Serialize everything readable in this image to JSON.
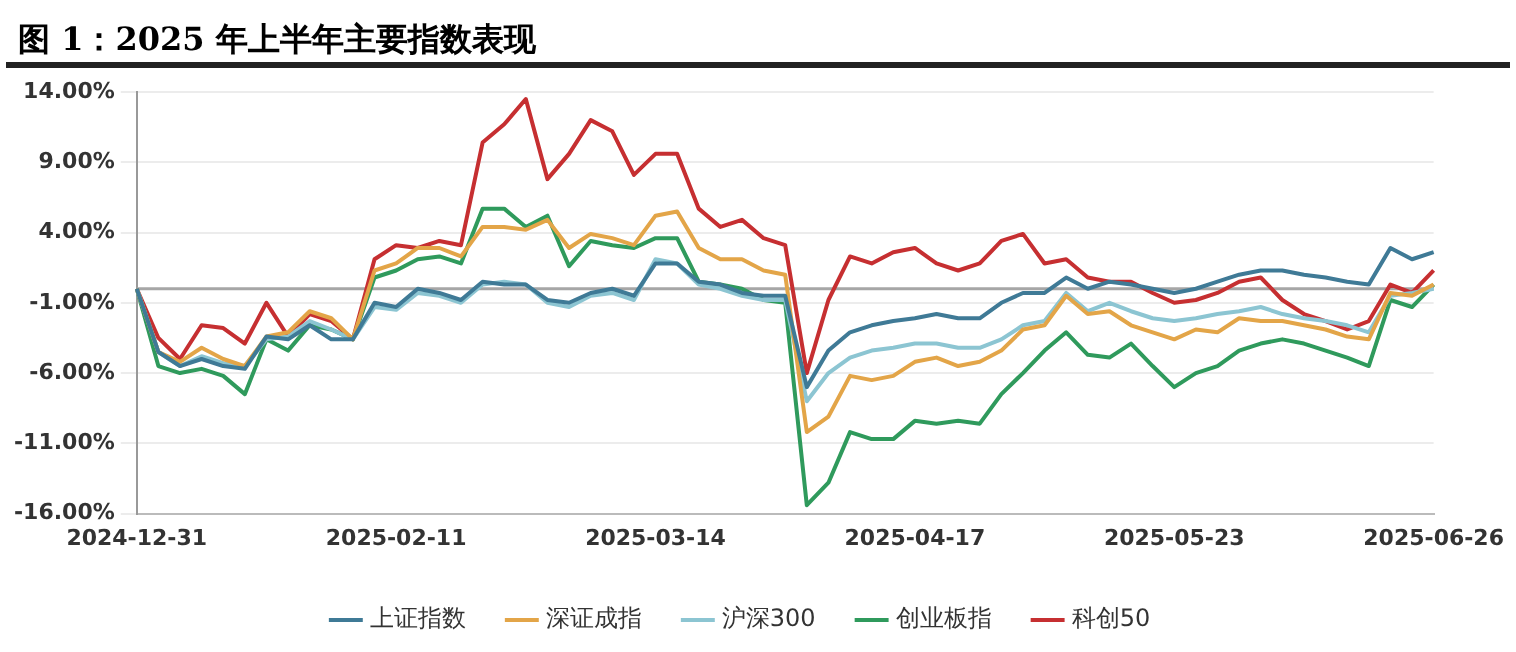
{
  "chart_data": {
    "type": "line",
    "title": "图 1：2025 年上半年主要指数表现",
    "categories": [
      "2024-12-31",
      null,
      null,
      null,
      null,
      null,
      null,
      null,
      null,
      null,
      null,
      null,
      "2025-02-11",
      null,
      null,
      null,
      null,
      null,
      null,
      null,
      null,
      null,
      null,
      null,
      "2025-03-14",
      null,
      null,
      null,
      null,
      null,
      null,
      null,
      null,
      null,
      null,
      null,
      "2025-04-17",
      null,
      null,
      null,
      null,
      null,
      null,
      null,
      null,
      null,
      null,
      null,
      "2025-05-23",
      null,
      null,
      null,
      null,
      null,
      null,
      null,
      null,
      null,
      null,
      null,
      "2025-06-26"
    ],
    "series": [
      {
        "name": "上证指数",
        "color": "#3f7a96",
        "values": [
          0,
          -4.5,
          -5.5,
          -5,
          -5.5,
          -5.7,
          -3.4,
          -3.6,
          -2.6,
          -3.6,
          -3.6,
          -1,
          -1.3,
          0,
          -0.3,
          -0.8,
          0.5,
          0.3,
          0.3,
          -0.8,
          -1,
          -0.3,
          0,
          -0.5,
          1.8,
          1.8,
          0.5,
          0.3,
          -0.3,
          -0.5,
          -0.5,
          -7,
          -4.4,
          -3.1,
          -2.6,
          -2.3,
          -2.1,
          -1.8,
          -2.1,
          -2.1,
          -1,
          -0.3,
          -0.3,
          0.8,
          0,
          0.5,
          0.3,
          0,
          -0.3,
          0,
          0.5,
          1,
          1.3,
          1.3,
          1,
          0.8,
          0.5,
          0.3,
          2.9,
          2.1,
          2.6
        ]
      },
      {
        "name": "深证成指",
        "color": "#e3a548",
        "values": [
          0,
          -4.5,
          -5.2,
          -4.2,
          -5,
          -5.5,
          -3.4,
          -3.1,
          -1.6,
          -2.1,
          -3.6,
          1.3,
          1.8,
          2.9,
          2.9,
          2.3,
          4.4,
          4.4,
          4.2,
          4.9,
          2.9,
          3.9,
          3.6,
          3.1,
          5.2,
          5.5,
          2.9,
          2.1,
          2.1,
          1.3,
          1,
          -10.2,
          -9.1,
          -6.2,
          -6.5,
          -6.2,
          -5.2,
          -4.9,
          -5.5,
          -5.2,
          -4.4,
          -2.9,
          -2.6,
          -0.5,
          -1.8,
          -1.6,
          -2.6,
          -3.1,
          -3.6,
          -2.9,
          -3.1,
          -2.1,
          -2.3,
          -2.3,
          -2.6,
          -2.9,
          -3.4,
          -3.6,
          -0.3,
          -0.5,
          0.3
        ]
      },
      {
        "name": "沪深300",
        "color": "#8cc5d2",
        "values": [
          0,
          -4.5,
          -5.5,
          -4.8,
          -5.3,
          -5.5,
          -3.6,
          -3.4,
          -2.3,
          -2.9,
          -3.6,
          -1.3,
          -1.5,
          -0.3,
          -0.5,
          -1,
          0.3,
          0.5,
          0.3,
          -1,
          -1.3,
          -0.5,
          -0.3,
          -0.8,
          2.1,
          1.8,
          0.3,
          0,
          -0.5,
          -0.8,
          -0.8,
          -8,
          -6,
          -4.9,
          -4.4,
          -4.2,
          -3.9,
          -3.9,
          -4.2,
          -4.2,
          -3.6,
          -2.6,
          -2.3,
          -0.3,
          -1.6,
          -1,
          -1.6,
          -2.1,
          -2.3,
          -2.1,
          -1.8,
          -1.6,
          -1.3,
          -1.8,
          -2.1,
          -2.3,
          -2.6,
          -3.1,
          -0.5,
          -0.3,
          0
        ]
      },
      {
        "name": "创业板指",
        "color": "#2f9a5c",
        "values": [
          0,
          -5.5,
          -6,
          -5.7,
          -6.2,
          -7.5,
          -3.6,
          -4.4,
          -2.6,
          -2.9,
          -3.6,
          0.8,
          1.3,
          2.1,
          2.3,
          1.8,
          5.7,
          5.7,
          4.4,
          5.2,
          1.6,
          3.4,
          3.1,
          2.9,
          3.6,
          3.6,
          0.5,
          0.3,
          0,
          -0.8,
          -1,
          -15.4,
          -13.8,
          -10.2,
          -10.7,
          -10.7,
          -9.4,
          -9.6,
          -9.4,
          -9.6,
          -7.5,
          -6,
          -4.4,
          -3.1,
          -4.7,
          -4.9,
          -3.9,
          -5.5,
          -7,
          -6,
          -5.5,
          -4.4,
          -3.9,
          -3.6,
          -3.9,
          -4.4,
          -4.9,
          -5.5,
          -0.8,
          -1.3,
          0.3
        ]
      },
      {
        "name": "科创50",
        "color": "#c62f31",
        "values": [
          0,
          -3.5,
          -5,
          -2.6,
          -2.8,
          -3.9,
          -1,
          -3.4,
          -1.8,
          -2.3,
          -3.6,
          2.1,
          3.1,
          2.9,
          3.4,
          3.1,
          10.4,
          11.7,
          13.5,
          7.8,
          9.6,
          12,
          11.2,
          8.1,
          9.6,
          9.6,
          5.7,
          4.4,
          4.9,
          3.6,
          3.1,
          -6,
          -0.8,
          2.3,
          1.8,
          2.6,
          2.9,
          1.8,
          1.3,
          1.8,
          3.4,
          3.9,
          1.8,
          2.1,
          0.8,
          0.5,
          0.5,
          -0.3,
          -1,
          -0.8,
          -0.3,
          0.5,
          0.8,
          -0.8,
          -1.8,
          -2.3,
          -2.9,
          -2.3,
          0.3,
          -0.3,
          1.3
        ]
      }
    ],
    "ylim": [
      -16,
      14
    ],
    "yticks": [
      {
        "value": -16,
        "label": "-16.00%"
      },
      {
        "value": -11,
        "label": "-11.00%"
      },
      {
        "value": -6,
        "label": "-6.00%"
      },
      {
        "value": -1,
        "label": "-1.00%"
      },
      {
        "value": 4,
        "label": "4.00%"
      },
      {
        "value": 9,
        "label": "9.00%"
      },
      {
        "value": 14,
        "label": "14.00%"
      }
    ],
    "ref_lines": [
      {
        "axis": "y",
        "value": 0,
        "color": "#a6a6a6"
      }
    ],
    "grid": "y",
    "legend": "bottom",
    "marker": "none",
    "line_style": "solid"
  }
}
